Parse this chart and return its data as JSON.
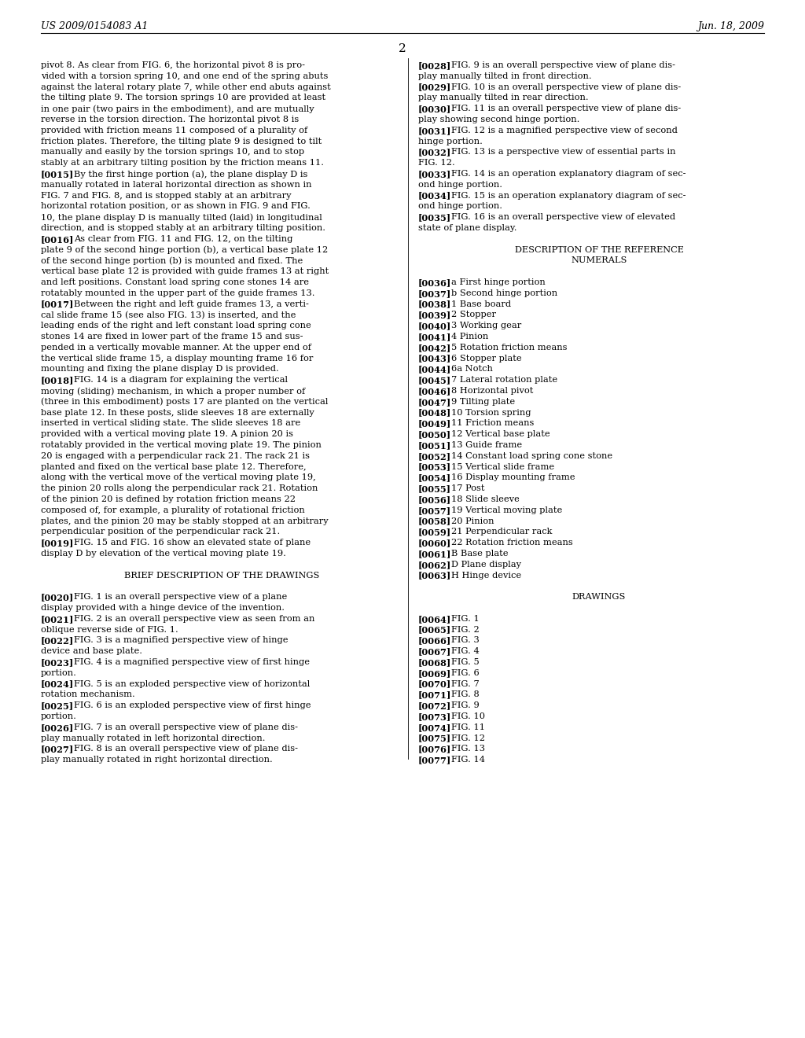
{
  "header_left": "US 2009/0154083 A1",
  "header_right": "Jun. 18, 2009",
  "page_number": "2",
  "background_color": "#ffffff",
  "text_color": "#000000",
  "left_column_text": [
    {
      "text": "pivot 8. As clear from FIG. 6, the horizontal pivot 8 is pro-",
      "bold_part": ""
    },
    {
      "text": "vided with a torsion spring 10, and one end of the spring abuts",
      "bold_part": ""
    },
    {
      "text": "against the lateral rotary plate 7, while other end abuts against",
      "bold_part": ""
    },
    {
      "text": "the tilting plate 9. The torsion springs 10 are provided at least",
      "bold_part": ""
    },
    {
      "text": "in one pair (two pairs in the embodiment), and are mutually",
      "bold_part": ""
    },
    {
      "text": "reverse in the torsion direction. The horizontal pivot 8 is",
      "bold_part": ""
    },
    {
      "text": "provided with friction means 11 composed of a plurality of",
      "bold_part": ""
    },
    {
      "text": "friction plates. Therefore, the tilting plate 9 is designed to tilt",
      "bold_part": ""
    },
    {
      "text": "manually and easily by the torsion springs 10, and to stop",
      "bold_part": ""
    },
    {
      "text": "stably at an arbitrary tilting position by the friction means 11.",
      "bold_part": ""
    },
    {
      "text": "[0015]",
      "rest": "    By the first hinge portion (a), the plane display D is",
      "bold_part": "[0015]"
    },
    {
      "text": "manually rotated in lateral horizontal direction as shown in",
      "bold_part": ""
    },
    {
      "text": "FIG. 7 and FIG. 8, and is stopped stably at an arbitrary",
      "bold_part": ""
    },
    {
      "text": "horizontal rotation position, or as shown in FIG. 9 and FIG.",
      "bold_part": ""
    },
    {
      "text": "10, the plane display D is manually tilted (laid) in longitudinal",
      "bold_part": ""
    },
    {
      "text": "direction, and is stopped stably at an arbitrary tilting position.",
      "bold_part": ""
    },
    {
      "text": "[0016]",
      "rest": "    As clear from FIG. 11 and FIG. 12, on the tilting",
      "bold_part": "[0016]"
    },
    {
      "text": "plate 9 of the second hinge portion (b), a vertical base plate 12",
      "bold_part": ""
    },
    {
      "text": "of the second hinge portion (b) is mounted and fixed. The",
      "bold_part": ""
    },
    {
      "text": "vertical base plate 12 is provided with guide frames 13 at right",
      "bold_part": ""
    },
    {
      "text": "and left positions. Constant load spring cone stones 14 are",
      "bold_part": ""
    },
    {
      "text": "rotatably mounted in the upper part of the guide frames 13.",
      "bold_part": ""
    },
    {
      "text": "[0017]",
      "rest": "    Between the right and left guide frames 13, a verti-",
      "bold_part": "[0017]"
    },
    {
      "text": "cal slide frame 15 (see also FIG. 13) is inserted, and the",
      "bold_part": ""
    },
    {
      "text": "leading ends of the right and left constant load spring cone",
      "bold_part": ""
    },
    {
      "text": "stones 14 are fixed in lower part of the frame 15 and sus-",
      "bold_part": ""
    },
    {
      "text": "pended in a vertically movable manner. At the upper end of",
      "bold_part": ""
    },
    {
      "text": "the vertical slide frame 15, a display mounting frame 16 for",
      "bold_part": ""
    },
    {
      "text": "mounting and fixing the plane display D is provided.",
      "bold_part": ""
    },
    {
      "text": "[0018]",
      "rest": "    FIG. 14 is a diagram for explaining the vertical",
      "bold_part": "[0018]"
    },
    {
      "text": "moving (sliding) mechanism, in which a proper number of",
      "bold_part": ""
    },
    {
      "text": "(three in this embodiment) posts 17 are planted on the vertical",
      "bold_part": ""
    },
    {
      "text": "base plate 12. In these posts, slide sleeves 18 are externally",
      "bold_part": ""
    },
    {
      "text": "inserted in vertical sliding state. The slide sleeves 18 are",
      "bold_part": ""
    },
    {
      "text": "provided with a vertical moving plate 19. A pinion 20 is",
      "bold_part": ""
    },
    {
      "text": "rotatably provided in the vertical moving plate 19. The pinion",
      "bold_part": ""
    },
    {
      "text": "20 is engaged with a perpendicular rack 21. The rack 21 is",
      "bold_part": ""
    },
    {
      "text": "planted and fixed on the vertical base plate 12. Therefore,",
      "bold_part": ""
    },
    {
      "text": "along with the vertical move of the vertical moving plate 19,",
      "bold_part": ""
    },
    {
      "text": "the pinion 20 rolls along the perpendicular rack 21. Rotation",
      "bold_part": ""
    },
    {
      "text": "of the pinion 20 is defined by rotation friction means 22",
      "bold_part": ""
    },
    {
      "text": "composed of, for example, a plurality of rotational friction",
      "bold_part": ""
    },
    {
      "text": "plates, and the pinion 20 may be stably stopped at an arbitrary",
      "bold_part": ""
    },
    {
      "text": "perpendicular position of the perpendicular rack 21.",
      "bold_part": ""
    },
    {
      "text": "[0019]",
      "rest": "    FIG. 15 and FIG. 16 show an elevated state of plane",
      "bold_part": "[0019]"
    },
    {
      "text": "display D by elevation of the vertical moving plate 19.",
      "bold_part": ""
    },
    {
      "text": "",
      "bold_part": ""
    },
    {
      "text": "BRIEF DESCRIPTION OF THE DRAWINGS",
      "bold_part": "",
      "center": true
    },
    {
      "text": "",
      "bold_part": ""
    },
    {
      "text": "[0020]",
      "rest": "    FIG. 1 is an overall perspective view of a plane",
      "bold_part": "[0020]"
    },
    {
      "text": "display provided with a hinge device of the invention.",
      "bold_part": ""
    },
    {
      "text": "[0021]",
      "rest": "    FIG. 2 is an overall perspective view as seen from an",
      "bold_part": "[0021]"
    },
    {
      "text": "oblique reverse side of FIG. 1.",
      "bold_part": ""
    },
    {
      "text": "[0022]",
      "rest": "    FIG. 3 is a magnified perspective view of hinge",
      "bold_part": "[0022]"
    },
    {
      "text": "device and base plate.",
      "bold_part": ""
    },
    {
      "text": "[0023]",
      "rest": "    FIG. 4 is a magnified perspective view of first hinge",
      "bold_part": "[0023]"
    },
    {
      "text": "portion.",
      "bold_part": ""
    },
    {
      "text": "[0024]",
      "rest": "    FIG. 5 is an exploded perspective view of horizontal",
      "bold_part": "[0024]"
    },
    {
      "text": "rotation mechanism.",
      "bold_part": ""
    },
    {
      "text": "[0025]",
      "rest": "    FIG. 6 is an exploded perspective view of first hinge",
      "bold_part": "[0025]"
    },
    {
      "text": "portion.",
      "bold_part": ""
    },
    {
      "text": "[0026]",
      "rest": "    FIG. 7 is an overall perspective view of plane dis-",
      "bold_part": "[0026]"
    },
    {
      "text": "play manually rotated in left horizontal direction.",
      "bold_part": ""
    },
    {
      "text": "[0027]",
      "rest": "    FIG. 8 is an overall perspective view of plane dis-",
      "bold_part": "[0027]"
    },
    {
      "text": "play manually rotated in right horizontal direction.",
      "bold_part": ""
    }
  ],
  "right_column_text": [
    {
      "text": "[0028]",
      "rest": "    FIG. 9 is an overall perspective view of plane dis-",
      "bold_part": "[0028]"
    },
    {
      "text": "play manually tilted in front direction.",
      "bold_part": ""
    },
    {
      "text": "[0029]",
      "rest": "    FIG. 10 is an overall perspective view of plane dis-",
      "bold_part": "[0029]"
    },
    {
      "text": "play manually tilted in rear direction.",
      "bold_part": ""
    },
    {
      "text": "[0030]",
      "rest": "    FIG. 11 is an overall perspective view of plane dis-",
      "bold_part": "[0030]"
    },
    {
      "text": "play showing second hinge portion.",
      "bold_part": ""
    },
    {
      "text": "[0031]",
      "rest": "    FIG. 12 is a magnified perspective view of second",
      "bold_part": "[0031]"
    },
    {
      "text": "hinge portion.",
      "bold_part": ""
    },
    {
      "text": "[0032]",
      "rest": "    FIG. 13 is a perspective view of essential parts in",
      "bold_part": "[0032]"
    },
    {
      "text": "FIG. 12.",
      "bold_part": ""
    },
    {
      "text": "[0033]",
      "rest": "    FIG. 14 is an operation explanatory diagram of sec-",
      "bold_part": "[0033]"
    },
    {
      "text": "ond hinge portion.",
      "bold_part": ""
    },
    {
      "text": "[0034]",
      "rest": "    FIG. 15 is an operation explanatory diagram of sec-",
      "bold_part": "[0034]"
    },
    {
      "text": "ond hinge portion.",
      "bold_part": ""
    },
    {
      "text": "[0035]",
      "rest": "    FIG. 16 is an overall perspective view of elevated",
      "bold_part": "[0035]"
    },
    {
      "text": "state of plane display.",
      "bold_part": ""
    },
    {
      "text": "",
      "bold_part": ""
    },
    {
      "text": "DESCRIPTION OF THE REFERENCE",
      "bold_part": "",
      "center": true
    },
    {
      "text": "NUMERALS",
      "bold_part": "",
      "center": true
    },
    {
      "text": "",
      "bold_part": ""
    },
    {
      "text": "[0036]",
      "rest": "    a First hinge portion",
      "bold_part": "[0036]"
    },
    {
      "text": "[0037]",
      "rest": "    b Second hinge portion",
      "bold_part": "[0037]"
    },
    {
      "text": "[0038]",
      "rest": "    1 Base board",
      "bold_part": "[0038]"
    },
    {
      "text": "[0039]",
      "rest": "    2 Stopper",
      "bold_part": "[0039]"
    },
    {
      "text": "[0040]",
      "rest": "    3 Working gear",
      "bold_part": "[0040]"
    },
    {
      "text": "[0041]",
      "rest": "    4 Pinion",
      "bold_part": "[0041]"
    },
    {
      "text": "[0042]",
      "rest": "    5 Rotation friction means",
      "bold_part": "[0042]"
    },
    {
      "text": "[0043]",
      "rest": "    6 Stopper plate",
      "bold_part": "[0043]"
    },
    {
      "text": "[0044]",
      "rest": "    6a Notch",
      "bold_part": "[0044]"
    },
    {
      "text": "[0045]",
      "rest": "    7 Lateral rotation plate",
      "bold_part": "[0045]"
    },
    {
      "text": "[0046]",
      "rest": "    8 Horizontal pivot",
      "bold_part": "[0046]"
    },
    {
      "text": "[0047]",
      "rest": "    9 Tilting plate",
      "bold_part": "[0047]"
    },
    {
      "text": "[0048]",
      "rest": "    10 Torsion spring",
      "bold_part": "[0048]"
    },
    {
      "text": "[0049]",
      "rest": "    11 Friction means",
      "bold_part": "[0049]"
    },
    {
      "text": "[0050]",
      "rest": "    12 Vertical base plate",
      "bold_part": "[0050]"
    },
    {
      "text": "[0051]",
      "rest": "    13 Guide frame",
      "bold_part": "[0051]"
    },
    {
      "text": "[0052]",
      "rest": "    14 Constant load spring cone stone",
      "bold_part": "[0052]"
    },
    {
      "text": "[0053]",
      "rest": "    15 Vertical slide frame",
      "bold_part": "[0053]"
    },
    {
      "text": "[0054]",
      "rest": "    16 Display mounting frame",
      "bold_part": "[0054]"
    },
    {
      "text": "[0055]",
      "rest": "    17 Post",
      "bold_part": "[0055]"
    },
    {
      "text": "[0056]",
      "rest": "    18 Slide sleeve",
      "bold_part": "[0056]"
    },
    {
      "text": "[0057]",
      "rest": "    19 Vertical moving plate",
      "bold_part": "[0057]"
    },
    {
      "text": "[0058]",
      "rest": "    20 Pinion",
      "bold_part": "[0058]"
    },
    {
      "text": "[0059]",
      "rest": "    21 Perpendicular rack",
      "bold_part": "[0059]"
    },
    {
      "text": "[0060]",
      "rest": "    22 Rotation friction means",
      "bold_part": "[0060]"
    },
    {
      "text": "[0061]",
      "rest": "    B Base plate",
      "bold_part": "[0061]"
    },
    {
      "text": "[0062]",
      "rest": "    D Plane display",
      "bold_part": "[0062]"
    },
    {
      "text": "[0063]",
      "rest": "    H Hinge device",
      "bold_part": "[0063]"
    },
    {
      "text": "",
      "bold_part": ""
    },
    {
      "text": "DRAWINGS",
      "bold_part": "",
      "center": true
    },
    {
      "text": "",
      "bold_part": ""
    },
    {
      "text": "[0064]",
      "rest": "    FIG. 1",
      "bold_part": "[0064]"
    },
    {
      "text": "[0065]",
      "rest": "    FIG. 2",
      "bold_part": "[0065]"
    },
    {
      "text": "[0066]",
      "rest": "    FIG. 3",
      "bold_part": "[0066]"
    },
    {
      "text": "[0067]",
      "rest": "    FIG. 4",
      "bold_part": "[0067]"
    },
    {
      "text": "[0068]",
      "rest": "    FIG. 5",
      "bold_part": "[0068]"
    },
    {
      "text": "[0069]",
      "rest": "    FIG. 6",
      "bold_part": "[0069]"
    },
    {
      "text": "[0070]",
      "rest": "    FIG. 7",
      "bold_part": "[0070]"
    },
    {
      "text": "[0071]",
      "rest": "    FIG. 8",
      "bold_part": "[0071]"
    },
    {
      "text": "[0072]",
      "rest": "    FIG. 9",
      "bold_part": "[0072]"
    },
    {
      "text": "[0073]",
      "rest": "    FIG. 10",
      "bold_part": "[0073]"
    },
    {
      "text": "[0074]",
      "rest": "    FIG. 11",
      "bold_part": "[0074]"
    },
    {
      "text": "[0075]",
      "rest": "    FIG. 12",
      "bold_part": "[0075]"
    },
    {
      "text": "[0076]",
      "rest": "    FIG. 13",
      "bold_part": "[0076]"
    },
    {
      "text": "[0077]",
      "rest": "    FIG. 14",
      "bold_part": "[0077]"
    }
  ]
}
